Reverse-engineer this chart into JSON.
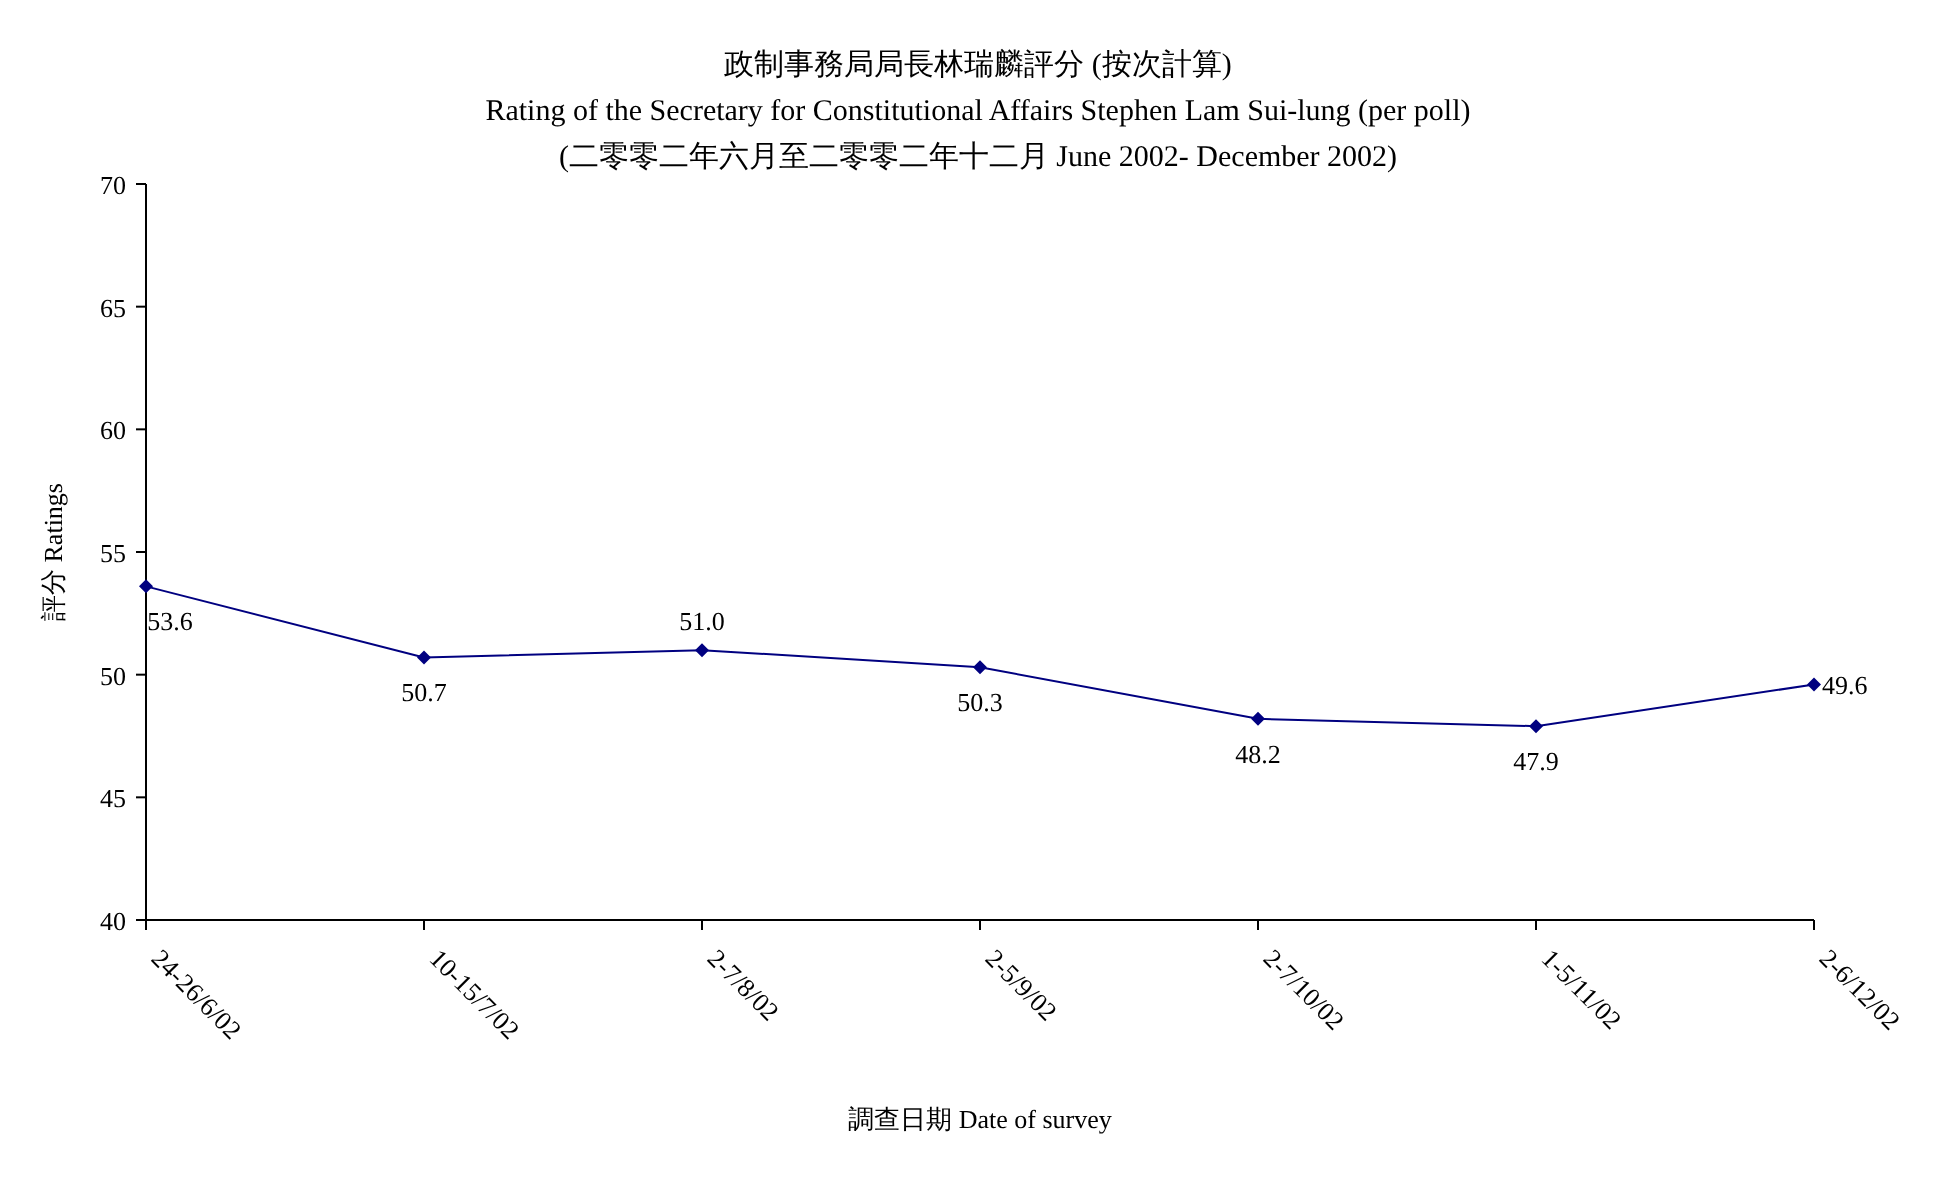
{
  "chart_data": {
    "type": "line",
    "title": "政制事務局局長林瑞麟評分 (按次計算)",
    "subtitle": "Rating of the Secretary for Constitutional Affairs Stephen Lam Sui-lung (per poll)",
    "annotations": [
      "(二零零二年六月至二零零二年十二月 June 2002- December 2002)"
    ],
    "xlabel": "調查日期 Date of survey",
    "ylabel": "評分 Ratings",
    "categories": [
      "24-26/6/02",
      "10-15/7/02",
      "2-7/8/02",
      "2-5/9/02",
      "2-7/10/02",
      "1-5/11/02",
      "2-6/12/02"
    ],
    "series": [
      {
        "color": "#000080",
        "values": [
          53.6,
          50.7,
          51.0,
          50.3,
          48.2,
          47.9,
          49.6
        ]
      }
    ],
    "value_labels": [
      "53.6",
      "50.7",
      "51.0",
      "50.3",
      "48.2",
      "47.9",
      "49.6"
    ],
    "ylim": [
      40,
      70
    ],
    "yticks": [
      40,
      45,
      50,
      55,
      60,
      65,
      70
    ],
    "marker": "diamond",
    "line_style": "solid",
    "grid": false
  }
}
